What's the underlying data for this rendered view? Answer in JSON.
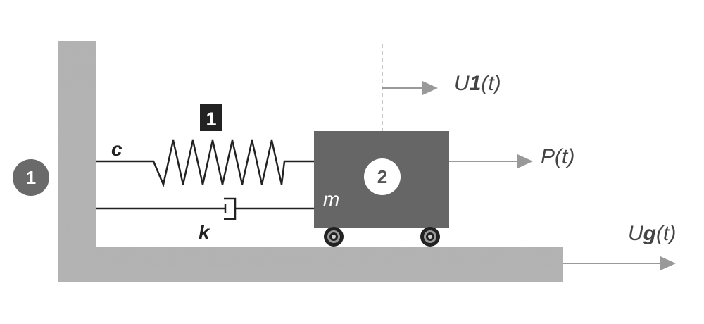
{
  "labels": {
    "damper_coefficient": "c",
    "spring_constant": "k",
    "mass": "m",
    "displacement_main": "U",
    "displacement_sub": "1",
    "displacement_arg": "(t)",
    "force": "P(t)",
    "ground_main": "U",
    "ground_sub": "g",
    "ground_arg": "(t)"
  },
  "badges": {
    "wall": "1",
    "spring": "1",
    "mass": "2"
  },
  "colors": {
    "concrete": "#a9a9a9",
    "mass_block": "#666666",
    "arrow": "#999999",
    "line": "#222222",
    "badge_wall": "#6a6a6a",
    "badge_spring": "#222222"
  }
}
